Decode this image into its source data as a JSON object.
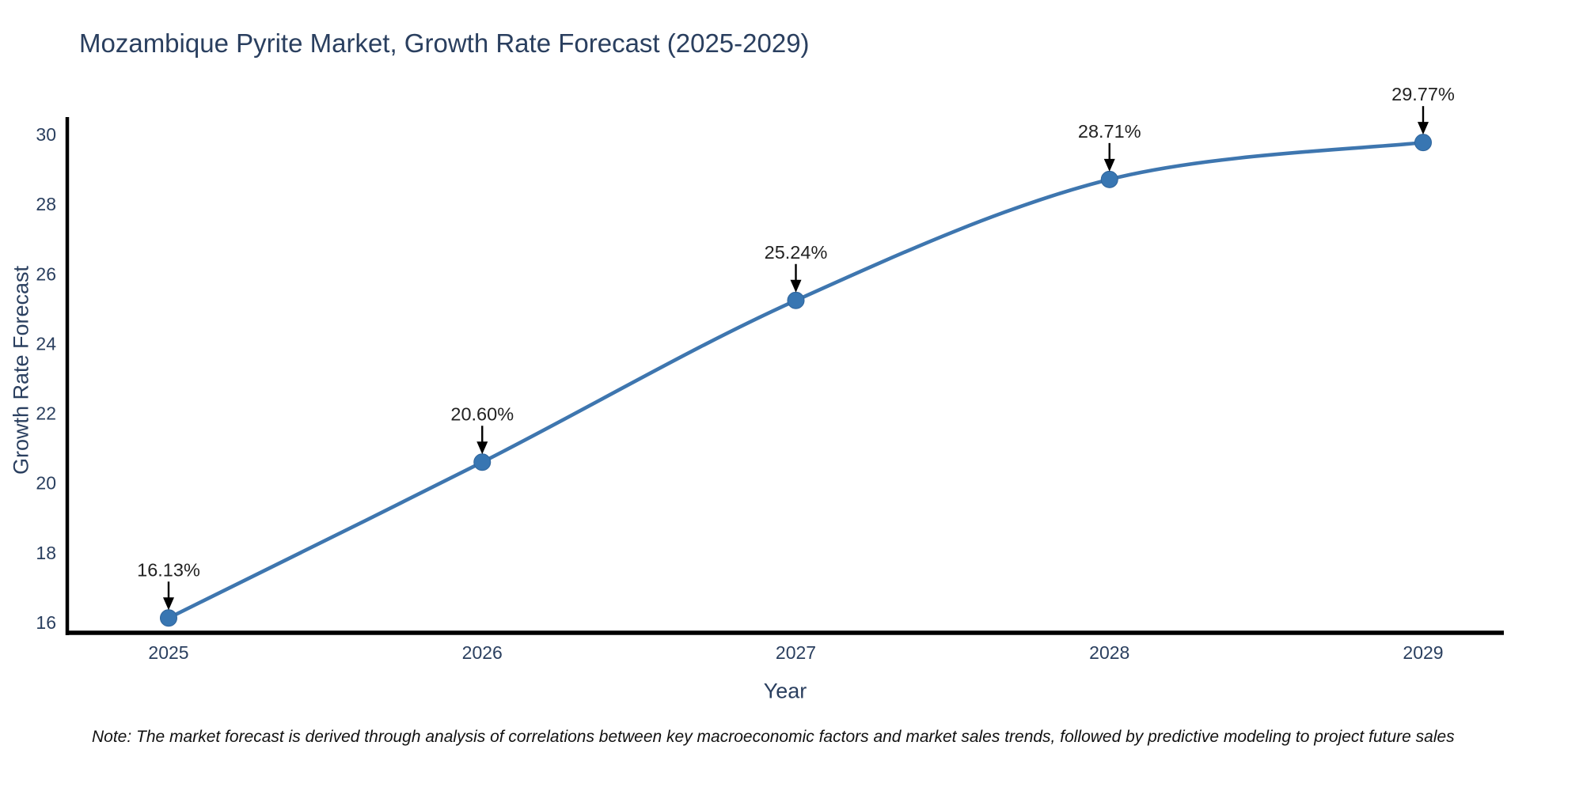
{
  "title": "Mozambique Pyrite Market, Growth Rate Forecast (2025-2029)",
  "note": "Note: The market forecast is derived through analysis of correlations between key macroeconomic factors and market sales trends, followed by predictive modeling to project future sales",
  "chart_data": {
    "type": "line",
    "line_shape": "spline",
    "title": "Mozambique Pyrite Market, Growth Rate Forecast (2025-2029)",
    "xlabel": "Year",
    "ylabel": "Growth Rate Forecast",
    "x": [
      2025,
      2026,
      2027,
      2028,
      2029
    ],
    "x_tick_labels": [
      "2025",
      "2026",
      "2027",
      "2028",
      "2029"
    ],
    "series": [
      {
        "name": "Growth Rate Forecast",
        "values": [
          16.13,
          20.6,
          25.24,
          28.71,
          29.77
        ]
      }
    ],
    "point_labels": [
      "16.13%",
      "20.60%",
      "25.24%",
      "28.71%",
      "29.77%"
    ],
    "y_ticks": [
      16,
      18,
      20,
      22,
      24,
      26,
      28,
      30
    ],
    "y_tick_labels": [
      "16",
      "18",
      "20",
      "22",
      "24",
      "26",
      "28",
      "30"
    ],
    "ylim": [
      16,
      30
    ],
    "grid": "off",
    "legend": "none",
    "colors": {
      "line": "#3E76AF",
      "marker_fill": "#3876B2",
      "marker_stroke": "#2F649B",
      "axis_line": "#000000",
      "tick_text": "#2a3f5f",
      "annotation_text": "#222222",
      "arrow": "#000000",
      "title_text": "#2a3f5f"
    }
  }
}
